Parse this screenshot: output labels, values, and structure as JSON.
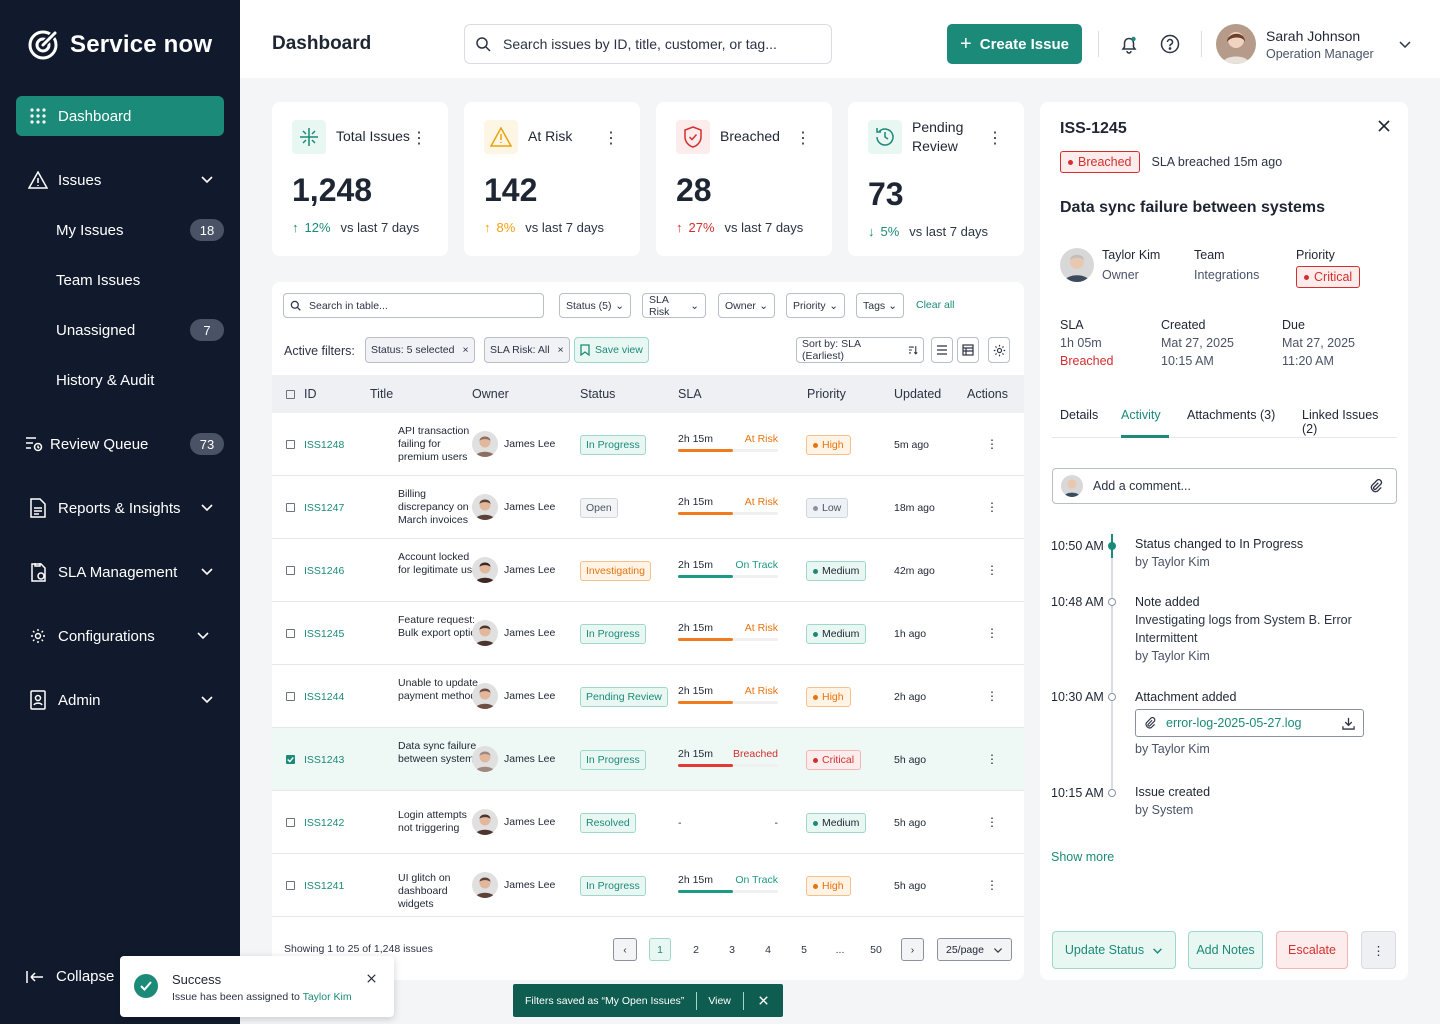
{
  "app": {
    "name": "Service now"
  },
  "sidebar": {
    "items": [
      {
        "label": "Dashboard",
        "icon": "grid-icon"
      },
      {
        "label": "Issues",
        "icon": "warning-icon"
      },
      {
        "label": "My Issues",
        "count": "18"
      },
      {
        "label": "Team Issues"
      },
      {
        "label": "Unassigned",
        "count": "7"
      },
      {
        "label": "History & Audit"
      },
      {
        "label": "Review Queue",
        "count": "73",
        "icon": "queue-icon"
      },
      {
        "label": "Reports & Insights",
        "icon": "report-icon"
      },
      {
        "label": "SLA Management",
        "icon": "sla-icon"
      },
      {
        "label": "Configurations",
        "icon": "gear-icon"
      },
      {
        "label": "Admin",
        "icon": "admin-icon"
      }
    ],
    "collapse_label": "Collapse"
  },
  "header": {
    "title": "Dashboard",
    "search_placeholder": "Search issues by ID, title, customer, or tag...",
    "create_label": "Create Issue",
    "user": {
      "name": "Sarah Johnson",
      "role": "Operation Manager"
    }
  },
  "stats": [
    {
      "label": "Total Issues",
      "value": "1,248",
      "delta": "12%",
      "direction": "up",
      "color": "#1b8a78",
      "vs": "vs last 7 days"
    },
    {
      "label": "At Risk",
      "value": "142",
      "delta": "8%",
      "direction": "up",
      "color": "#f59e0b",
      "vs": "vs last 7 days"
    },
    {
      "label": "Breached",
      "value": "28",
      "delta": "27%",
      "direction": "up",
      "color": "#d32f2f",
      "vs": "vs last 7 days"
    },
    {
      "label": "Pending Review",
      "value": "73",
      "delta": "5%",
      "direction": "down",
      "color": "#1b8a78",
      "vs": "vs last 7 days"
    }
  ],
  "table": {
    "search_placeholder": "Search in table...",
    "filters": [
      "Status (5)",
      "SLA Risk",
      "Owner",
      "Priority",
      "Tags"
    ],
    "clear_all": "Clear all",
    "active_filters_label": "Active filters:",
    "chips": [
      "Status: 5 selected",
      "SLA Risk: All"
    ],
    "save_view": "Save view",
    "sort_label": "Sort by: SLA (Earliest)",
    "columns": [
      "ID",
      "Title",
      "Owner",
      "Status",
      "SLA",
      "Priority",
      "Updated",
      "Actions"
    ],
    "rows": [
      {
        "id": "ISS1248",
        "title": "API transaction failing for premium users",
        "owner": "James Lee",
        "status": "In Progress",
        "status_kind": "green",
        "sla_time": "2h 15m",
        "sla_state": "At Risk",
        "sla_kind": "orange",
        "sla_fill": 0.55,
        "priority": "High",
        "priority_kind": "high",
        "updated": "5m ago",
        "checked": false
      },
      {
        "id": "ISS1247",
        "title": "Billing discrepancy on March invoices",
        "owner": "James Lee",
        "status": "Open",
        "status_kind": "gray",
        "sla_time": "2h 15m",
        "sla_state": "At Risk",
        "sla_kind": "orange",
        "sla_fill": 0.55,
        "priority": "Low",
        "priority_kind": "low",
        "updated": "18m ago",
        "checked": false
      },
      {
        "id": "ISS1246",
        "title": "Account locked for legitimate user",
        "owner": "James Lee",
        "status": "Investigating",
        "status_kind": "orange",
        "sla_time": "2h 15m",
        "sla_state": "On Track",
        "sla_kind": "green",
        "sla_fill": 0.55,
        "priority": "Medium",
        "priority_kind": "med",
        "updated": "42m ago",
        "checked": false
      },
      {
        "id": "ISS1245",
        "title": "Feature request: Bulk export option",
        "owner": "James Lee",
        "status": "In Progress",
        "status_kind": "green",
        "sla_time": "2h 15m",
        "sla_state": "At Risk",
        "sla_kind": "orange",
        "sla_fill": 0.55,
        "priority": "Medium",
        "priority_kind": "med",
        "updated": "1h ago",
        "checked": false
      },
      {
        "id": "ISS1244",
        "title": "Unable to update payment method",
        "owner": "James Lee",
        "status": "Pending Review",
        "status_kind": "green",
        "sla_time": "2h 15m",
        "sla_state": "At Risk",
        "sla_kind": "orange",
        "sla_fill": 0.55,
        "priority": "High",
        "priority_kind": "high",
        "updated": "2h ago",
        "checked": false
      },
      {
        "id": "ISS1243",
        "title": "Data sync failure between systems",
        "owner": "James Lee",
        "status": "In Progress",
        "status_kind": "green",
        "sla_time": "2h 15m",
        "sla_state": "Breached",
        "sla_kind": "red",
        "sla_fill": 0.55,
        "priority": "Critical",
        "priority_kind": "crit",
        "updated": "5h ago",
        "checked": true
      },
      {
        "id": "ISS1242",
        "title": "Login attempts not triggering",
        "owner": "James Lee",
        "status": "Resolved",
        "status_kind": "green",
        "sla_time": "-",
        "sla_state": "-",
        "sla_kind": "none",
        "sla_fill": 0,
        "priority": "Medium",
        "priority_kind": "med",
        "updated": "5h ago",
        "checked": false
      },
      {
        "id": "ISS1241",
        "title": "UI glitch on dashboard widgets",
        "owner": "James Lee",
        "status": "In Progress",
        "status_kind": "green",
        "sla_time": "2h 15m",
        "sla_state": "On Track",
        "sla_kind": "green",
        "sla_fill": 0.55,
        "priority": "High",
        "priority_kind": "high",
        "updated": "5h ago",
        "checked": false
      }
    ],
    "footer": "Showing 1 to 25 of 1,248 issues",
    "pages": [
      "1",
      "2",
      "3",
      "4",
      "5",
      "...",
      "50"
    ],
    "per_page": "25/page"
  },
  "detail": {
    "id": "ISS-1245",
    "status_tag": "Breached",
    "sla_note": "SLA breached 15m ago",
    "title": "Data sync failure between systems",
    "owner_name": "Taylor Kim",
    "owner_label": "Owner",
    "team_label": "Team",
    "team_value": "Integrations",
    "priority_label": "Priority",
    "priority_value": "Critical",
    "sla_label": "SLA",
    "sla_value": "1h 05m",
    "sla_state": "Breached",
    "created_label": "Created",
    "created_date": "Mat 27, 2025",
    "created_time": "10:15 AM",
    "due_label": "Due",
    "due_date": "Mat 27, 2025",
    "due_time": "11:20 AM",
    "tabs": [
      "Details",
      "Activity",
      "Attachments (3)",
      "Linked Issues (2)"
    ],
    "comment_placeholder": "Add a comment...",
    "timeline": [
      {
        "time": "10:50 AM",
        "title": "Status changed to In Progress",
        "note": "",
        "by": "by Taylor Kim"
      },
      {
        "time": "10:48 AM",
        "title": "Note added",
        "note": "Investigating logs from System B. Error Intermittent",
        "by": "by Taylor Kim"
      },
      {
        "time": "10:30 AM",
        "title": "Attachment added",
        "file": "error-log-2025-05-27.log",
        "by": "by Taylor Kim"
      },
      {
        "time": "10:15 AM",
        "title": "Issue created",
        "note": "",
        "by": "by System"
      }
    ],
    "show_more": "Show more",
    "actions": {
      "update": "Update Status",
      "notes": "Add Notes",
      "escalate": "Escalate"
    }
  },
  "toast": {
    "title": "Success",
    "message": "Issue has been assigned to ",
    "link": "Taylor Kim"
  },
  "snackbar": {
    "message": "Filters saved as “My Open Issues”",
    "action": "View"
  },
  "colors": {
    "accent": "#1b8a78",
    "sidebar": "#111a2c",
    "danger": "#d32f2f",
    "warning": "#e8730c"
  }
}
